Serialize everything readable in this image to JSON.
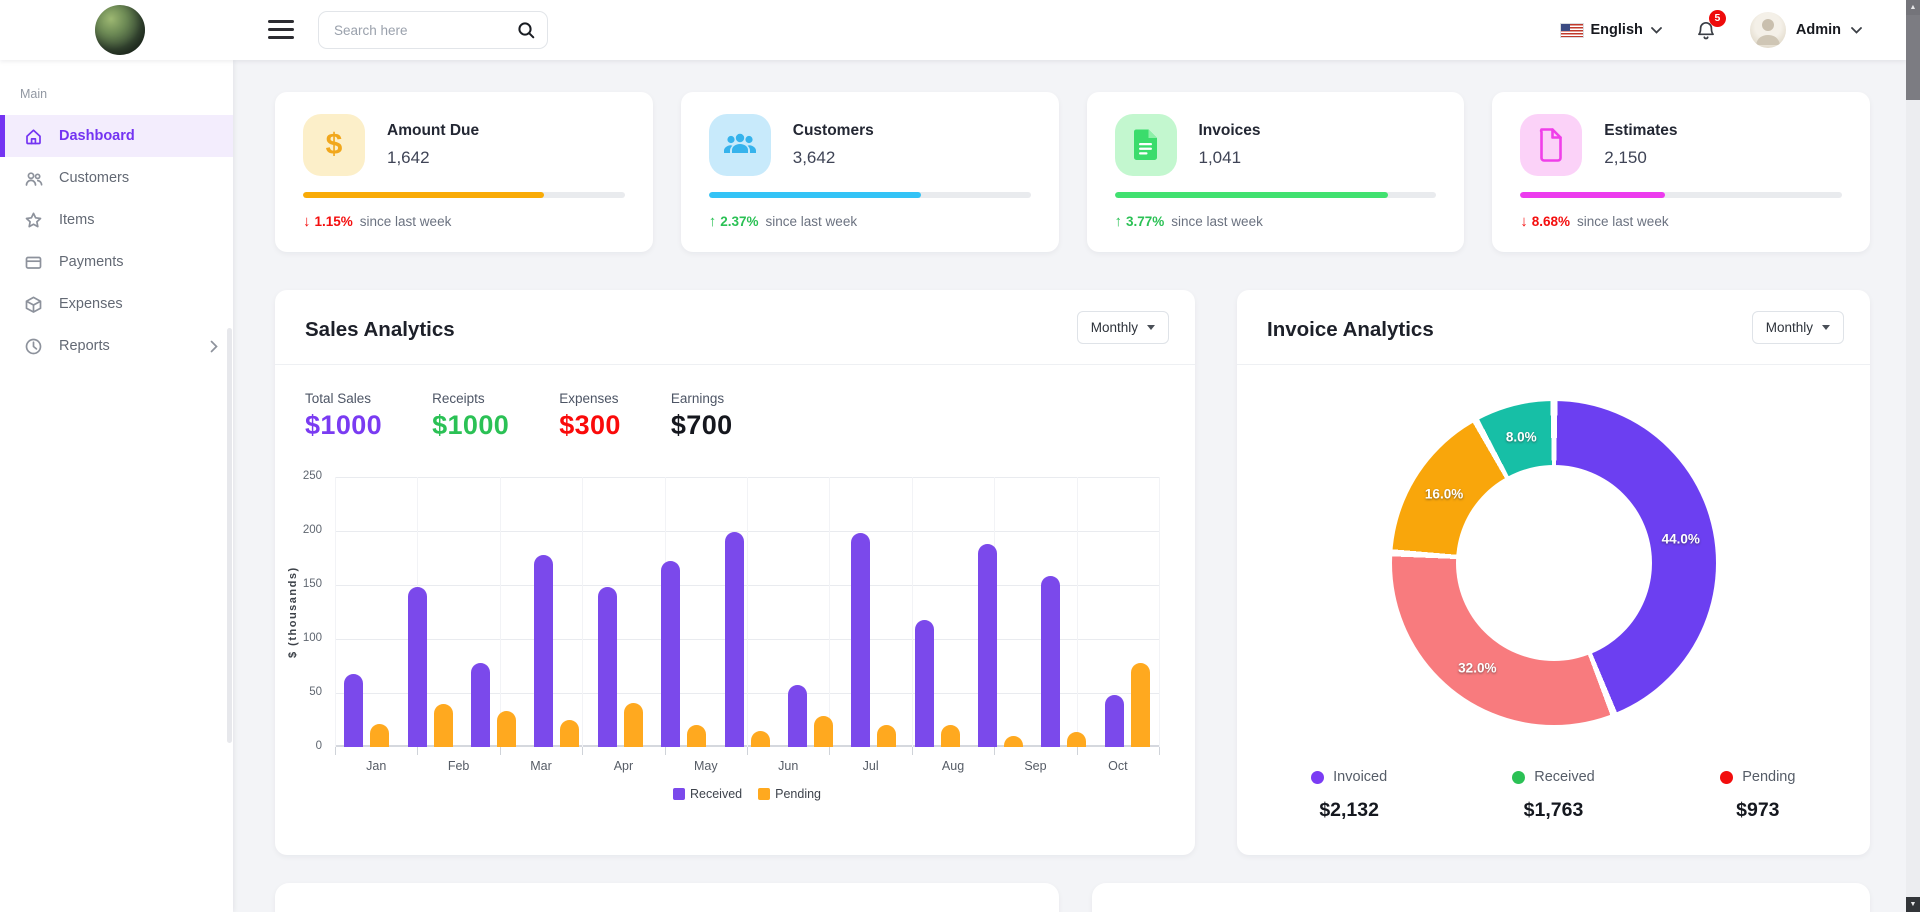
{
  "navbar": {
    "search_placeholder": "Search here",
    "language": "English",
    "notification_count": "5",
    "user_name": "Admin"
  },
  "sidebar": {
    "section_label": "Main",
    "items": [
      {
        "label": "Dashboard",
        "icon": "home-icon",
        "active": true
      },
      {
        "label": "Customers",
        "icon": "users-icon",
        "active": false
      },
      {
        "label": "Items",
        "icon": "star-icon",
        "active": false
      },
      {
        "label": "Payments",
        "icon": "credit-card-icon",
        "active": false
      },
      {
        "label": "Expenses",
        "icon": "package-icon",
        "active": false
      },
      {
        "label": "Reports",
        "icon": "clock-icon",
        "active": false,
        "has_submenu": true
      }
    ]
  },
  "stat_cards": [
    {
      "title": "Amount Due",
      "value": "1,642",
      "icon": "dollar-icon",
      "icon_bg": "#FCEFC9",
      "icon_color": "#F1A71C",
      "accent": "#F9AB07",
      "progress_pct": 75,
      "trend": "down",
      "change_pct": "1.15%",
      "change_note": "since last week",
      "trend_color": "#F40E0E"
    },
    {
      "title": "Customers",
      "value": "3,642",
      "icon": "customers-icon",
      "icon_bg": "#C8EAFB",
      "icon_color": "#36B3EC",
      "accent": "#33C3F6",
      "progress_pct": 66,
      "trend": "up",
      "change_pct": "2.37%",
      "change_note": "since last week",
      "trend_color": "#2BC155"
    },
    {
      "title": "Invoices",
      "value": "1,041",
      "icon": "invoice-file-icon",
      "icon_bg": "#C3F7CF",
      "icon_color": "#3BDC6C",
      "accent": "#41E170",
      "progress_pct": 85,
      "trend": "up",
      "change_pct": "3.77%",
      "change_note": "since last week",
      "trend_color": "#2BC155"
    },
    {
      "title": "Estimates",
      "value": "2,150",
      "icon": "estimate-file-icon",
      "icon_bg": "#FBD2F8",
      "icon_color": "#F03FE9",
      "accent": "#EC3BEE",
      "progress_pct": 45,
      "trend": "down",
      "change_pct": "8.68%",
      "change_note": "since last week",
      "trend_color": "#F40E0E"
    }
  ],
  "sales_analytics": {
    "title": "Sales Analytics",
    "period": "Monthly",
    "summary": [
      {
        "label": "Total Sales",
        "value": "$1000",
        "color": "#7A3BF2"
      },
      {
        "label": "Receipts",
        "value": "$1000",
        "color": "#2BC155"
      },
      {
        "label": "Expenses",
        "value": "$300",
        "color": "#FA0A0A"
      },
      {
        "label": "Earnings",
        "value": "$700",
        "color": "#15171E"
      }
    ]
  },
  "invoice_analytics": {
    "title": "Invoice Analytics",
    "period": "Monthly",
    "legend": [
      {
        "label": "Invoiced",
        "amount": "$2,132",
        "color": "#7B3CF4"
      },
      {
        "label": "Received",
        "amount": "$1,763",
        "color": "#2BC155"
      },
      {
        "label": "Pending",
        "amount": "$973",
        "color": "#F20D0D"
      }
    ]
  },
  "chart_data": [
    {
      "type": "bar",
      "title": "Sales Analytics",
      "ylabel": "$ (thousands)",
      "ylim": [
        0,
        250
      ],
      "yticks": [
        0,
        50,
        100,
        150,
        200,
        250
      ],
      "x_labels": [
        "Jan",
        "Feb",
        "Mar",
        "Apr",
        "May",
        "Jun",
        "Jul",
        "Aug",
        "Sep",
        "Oct"
      ],
      "legend_position": "bottom",
      "grid": true,
      "series": [
        {
          "name": "Received",
          "color": "#7B49EB",
          "values": [
            68,
            148,
            78,
            178,
            148,
            172,
            199,
            57,
            198,
            118,
            188,
            158,
            48
          ]
        },
        {
          "name": "Pending",
          "color": "#FFA91F",
          "values": [
            21,
            40,
            33,
            25,
            41,
            20,
            15,
            29,
            20,
            20,
            10,
            14,
            78
          ]
        }
      ],
      "note": "13 bar pairs are drawn evenly across 10 month labels, as in the source chart"
    },
    {
      "type": "donut",
      "title": "Invoice Analytics",
      "start_angle_deg": 0,
      "direction": "clockwise",
      "slices": [
        {
          "label": "44.0%",
          "value": 44,
          "color": "#6C3FF1"
        },
        {
          "label": "32.0%",
          "value": 32,
          "color": "#F87B7E"
        },
        {
          "label": "16.0%",
          "value": 16,
          "color": "#F9A60B"
        },
        {
          "label": "8.0%",
          "value": 8,
          "color": "#17BFA6"
        }
      ]
    }
  ]
}
